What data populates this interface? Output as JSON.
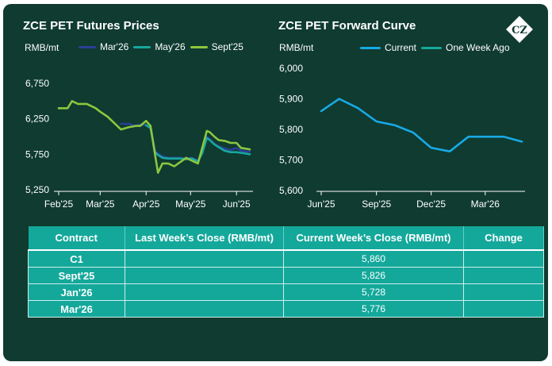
{
  "left_chart": {
    "title": "ZCE PET Futures Prices",
    "unit": "RMB/mt",
    "legend": [
      {
        "label": "Mar'26",
        "color": "#2b3f98"
      },
      {
        "label": "May'26",
        "color": "#18a79c"
      },
      {
        "label": "Sept'25",
        "color": "#8cc63f"
      }
    ]
  },
  "right_chart": {
    "title": "ZCE PET Forward Curve",
    "unit": "RMB/mt",
    "legend": [
      {
        "label": "Current",
        "color": "#18a9e6"
      },
      {
        "label": "One Week Ago",
        "color": "#18a79c"
      }
    ]
  },
  "logo": {
    "text": "CZ",
    "icon": "diamond-logo"
  },
  "chart_data": [
    {
      "type": "line",
      "title": "ZCE PET Futures Prices",
      "ylabel": "RMB/mt",
      "x": [
        "2025-02-01",
        "2025-02-07",
        "2025-02-10",
        "2025-02-14",
        "2025-02-20",
        "2025-02-26",
        "2025-03-01",
        "2025-03-06",
        "2025-03-10",
        "2025-03-15",
        "2025-03-20",
        "2025-03-25",
        "2025-03-28",
        "2025-04-01",
        "2025-04-04",
        "2025-04-07",
        "2025-04-09",
        "2025-04-12",
        "2025-04-16",
        "2025-04-20",
        "2025-04-24",
        "2025-04-28",
        "2025-05-02",
        "2025-05-06",
        "2025-05-09",
        "2025-05-12",
        "2025-05-14",
        "2025-05-17",
        "2025-05-20",
        "2025-05-24",
        "2025-05-28",
        "2025-06-01",
        "2025-06-04",
        "2025-06-07",
        "2025-06-10"
      ],
      "xticks": [
        "Feb'25",
        "Mar'25",
        "Apr'25",
        "May'25",
        "Jun'25"
      ],
      "xtick_dates": [
        "2025-02-01",
        "2025-03-01",
        "2025-04-01",
        "2025-05-01",
        "2025-06-01"
      ],
      "yticks": [
        "6,750",
        "6,250",
        "5,750",
        "5,250"
      ],
      "ylim": [
        5250,
        6750
      ],
      "series": [
        {
          "name": "Mar'26",
          "color": "#2b3f98",
          "values": [
            null,
            null,
            null,
            null,
            null,
            null,
            null,
            null,
            null,
            6180,
            6180,
            6150,
            6170,
            6160,
            6120,
            5800,
            5760,
            5720,
            5700,
            5700,
            5700,
            5690,
            5700,
            5660,
            5780,
            6000,
            5960,
            5900,
            5860,
            5830,
            5810,
            5840,
            5800,
            5790,
            5790
          ]
        },
        {
          "name": "May'26",
          "color": "#18a79c",
          "values": [
            null,
            null,
            null,
            null,
            null,
            null,
            null,
            null,
            null,
            null,
            null,
            null,
            null,
            6160,
            6120,
            5780,
            5740,
            5700,
            5690,
            5690,
            5690,
            5680,
            5690,
            5650,
            5770,
            5980,
            5950,
            5890,
            5850,
            5800,
            5780,
            5780,
            5770,
            5760,
            5750
          ]
        },
        {
          "name": "Sept'25",
          "color": "#8cc63f",
          "values": [
            6400,
            6400,
            6500,
            6460,
            6460,
            6400,
            6350,
            6280,
            6200,
            6100,
            6130,
            6150,
            6150,
            6220,
            6150,
            5750,
            5490,
            5620,
            5620,
            5580,
            5640,
            5700,
            5660,
            5620,
            5850,
            6080,
            6060,
            6000,
            5950,
            5940,
            5910,
            5910,
            5840,
            5830,
            5820
          ]
        }
      ]
    },
    {
      "type": "line",
      "title": "ZCE PET Forward Curve",
      "ylabel": "RMB/mt",
      "x": [
        "2025-06-01",
        "2025-07-01",
        "2025-08-01",
        "2025-09-01",
        "2025-10-01",
        "2025-11-01",
        "2025-12-01",
        "2026-01-01",
        "2026-02-01",
        "2026-03-01",
        "2026-04-01",
        "2026-05-01"
      ],
      "xticks": [
        "Jun'25",
        "Sep'25",
        "Dec'25",
        "Mar'26"
      ],
      "xtick_dates": [
        "2025-06-01",
        "2025-09-01",
        "2025-12-01",
        "2026-03-01"
      ],
      "yticks": [
        "6,000",
        "5,900",
        "5,800",
        "5,700",
        "5,600"
      ],
      "ylim": [
        5600,
        6000
      ],
      "series": [
        {
          "name": "Current",
          "color": "#18a9e6",
          "values": [
            5860,
            5900,
            5870,
            5826,
            5814,
            5790,
            5740,
            5728,
            5776,
            5776,
            5776,
            5760
          ]
        }
      ]
    }
  ],
  "table": {
    "headers": [
      "Contract",
      "Last Week’s Close (RMB/mt)",
      "Current Week’s Close (RMB/mt)",
      "Change"
    ],
    "rows": [
      [
        "C1",
        "",
        "5,860",
        ""
      ],
      [
        "Sept'25",
        "",
        "5,826",
        ""
      ],
      [
        "Jan'26",
        "",
        "5,728",
        ""
      ],
      [
        "Mar'26",
        "",
        "5,776",
        ""
      ]
    ]
  }
}
